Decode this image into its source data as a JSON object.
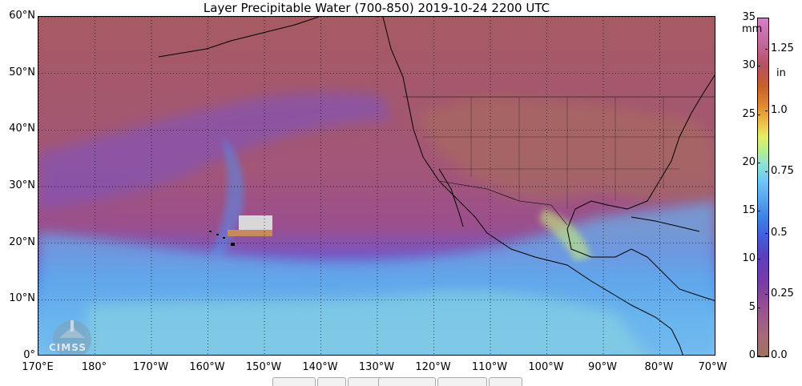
{
  "title": "Layer Precipitable Water (700-850)  2019-10-24 2200 UTC",
  "map": {
    "lat_ticks": [
      {
        "value": 60,
        "label": "60°N"
      },
      {
        "value": 50,
        "label": "50°N"
      },
      {
        "value": 40,
        "label": "40°N"
      },
      {
        "value": 30,
        "label": "30°N"
      },
      {
        "value": 20,
        "label": "20°N"
      },
      {
        "value": 10,
        "label": "10°N"
      },
      {
        "value": 0,
        "label": "0°"
      }
    ],
    "lon_ticks": [
      {
        "value": 170,
        "label": "170°E"
      },
      {
        "value": 180,
        "label": "180°"
      },
      {
        "value": 190,
        "label": "170°W"
      },
      {
        "value": 200,
        "label": "160°W"
      },
      {
        "value": 210,
        "label": "150°W"
      },
      {
        "value": 220,
        "label": "140°W"
      },
      {
        "value": 230,
        "label": "130°W"
      },
      {
        "value": 240,
        "label": "120°W"
      },
      {
        "value": 250,
        "label": "110°W"
      },
      {
        "value": 260,
        "label": "100°W"
      },
      {
        "value": 270,
        "label": "90°W"
      },
      {
        "value": 280,
        "label": "80°W"
      },
      {
        "value": 290,
        "label": "70°W"
      }
    ],
    "lon_range": [
      170,
      290
    ],
    "lat_range": [
      0,
      60
    ],
    "grid": true
  },
  "colorbar": {
    "mm_unit": "mm",
    "in_unit": "in",
    "range_mm": [
      0,
      35
    ],
    "mm_ticks": [
      {
        "value": 35,
        "label": "35"
      },
      {
        "value": 30,
        "label": "30"
      },
      {
        "value": 25,
        "label": "25"
      },
      {
        "value": 20,
        "label": "20"
      },
      {
        "value": 15,
        "label": "15"
      },
      {
        "value": 10,
        "label": "10"
      },
      {
        "value": 5,
        "label": "5"
      },
      {
        "value": 0,
        "label": "0"
      }
    ],
    "in_ticks": [
      {
        "value_mm": 31.75,
        "label": "1.25"
      },
      {
        "value_mm": 25.4,
        "label": "1.0"
      },
      {
        "value_mm": 19.05,
        "label": "0.75"
      },
      {
        "value_mm": 12.7,
        "label": "0.5"
      },
      {
        "value_mm": 6.35,
        "label": "0.25"
      },
      {
        "value_mm": 0,
        "label": "0.0"
      }
    ]
  },
  "logo": {
    "text": "CIMSS"
  }
}
